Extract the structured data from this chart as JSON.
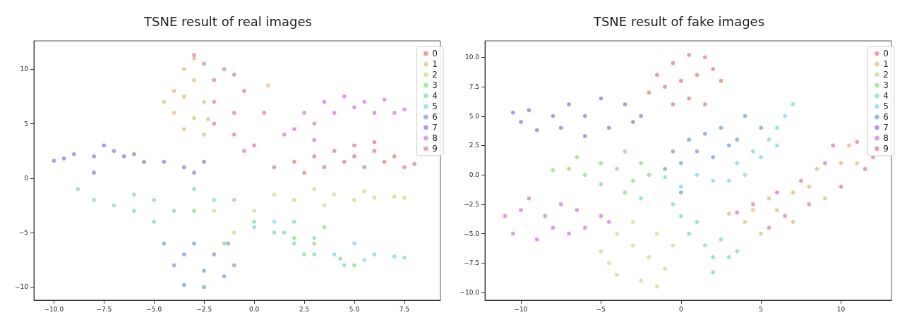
{
  "chart_data": [
    {
      "type": "scatter",
      "title": "TSNE result of real images",
      "legend": "top right",
      "marker": "circle",
      "xlim": [
        -11.0,
        9.3
      ],
      "ylim": [
        -11.2,
        12.6
      ],
      "xticks": [
        {
          "value": -10,
          "label": "−10.0"
        },
        {
          "value": -7.5,
          "label": "−7.5"
        },
        {
          "value": -5,
          "label": "−5.0"
        },
        {
          "value": -2.5,
          "label": "−2.5"
        },
        {
          "value": 0,
          "label": "0.0"
        },
        2.5,
        {
          "value": 5,
          "label": "5.0"
        },
        7.5
      ],
      "yticks": [
        {
          "value": -10,
          "label": "−10"
        },
        {
          "value": -5,
          "label": "−5"
        },
        0,
        5,
        10
      ],
      "series": [
        {
          "name": "0",
          "color": "#db5f57",
          "x": [
            1,
            2,
            3,
            3.5,
            4,
            4.5,
            5,
            5,
            5.5,
            6,
            6.5,
            7,
            7.5,
            8,
            2.5,
            6
          ],
          "values": [
            1,
            1.5,
            2,
            1,
            2.5,
            1.5,
            3,
            2,
            1,
            2.5,
            1.5,
            2,
            1,
            1.3,
            0.5,
            3.3
          ]
        },
        {
          "name": "1",
          "color": "#dbae57",
          "x": [
            -3,
            -3.5,
            -3,
            -4,
            -4.5,
            -3.5,
            -4,
            -3,
            -3.5,
            -2.3,
            -2.5,
            0.7,
            -2.5
          ],
          "values": [
            11,
            10,
            9,
            8,
            7,
            7.5,
            6,
            5.5,
            4.5,
            5.4,
            4,
            8.5,
            7
          ]
        },
        {
          "name": "2",
          "color": "#b9db57",
          "x": [
            1,
            2,
            3,
            3.5,
            4,
            5,
            5.5,
            6,
            7,
            7.5,
            0,
            -2,
            -1
          ],
          "values": [
            -1.5,
            -2,
            -1,
            -2.5,
            -1.5,
            -2,
            -1.2,
            -1.8,
            -1.7,
            -1.8,
            -3,
            -3,
            -5
          ]
        },
        {
          "name": "3",
          "color": "#69db57",
          "x": [
            -3,
            -1,
            0,
            1,
            2,
            3,
            4.3,
            5,
            2.5,
            -1.5,
            3.5
          ],
          "values": [
            -3,
            -2,
            -4,
            -5,
            -5.5,
            -6,
            -7.4,
            -8,
            -7,
            -6,
            -4.5
          ]
        },
        {
          "name": "4",
          "color": "#57db94",
          "x": [
            -8.8,
            -8,
            -7,
            -6,
            -6,
            -5,
            -5,
            -4,
            -3,
            -2,
            1.5,
            3,
            2
          ],
          "values": [
            -1,
            -2,
            -2.5,
            -1.5,
            -3,
            -4,
            -2,
            -3,
            -1,
            -2,
            -5,
            -7,
            -4
          ]
        },
        {
          "name": "5",
          "color": "#57d3db",
          "x": [
            0,
            1,
            2,
            3,
            4,
            5,
            5.5,
            6,
            7,
            7.5,
            4.5
          ],
          "values": [
            -4.5,
            -4,
            -6,
            -5.5,
            -7,
            -6,
            -7.5,
            -7,
            -7.2,
            -7.3,
            -8
          ]
        },
        {
          "name": "6",
          "color": "#5784db",
          "x": [
            -4.5,
            -4,
            -3.5,
            -3.5,
            -3,
            -2.5,
            -2.5,
            -2,
            -1.5,
            -1,
            -1.3
          ],
          "values": [
            -6,
            -8,
            -7,
            -9.8,
            -6,
            -8.5,
            -10,
            -7,
            -9,
            -8,
            -6
          ]
        },
        {
          "name": "7",
          "color": "#7957db",
          "x": [
            -10,
            -9.5,
            -9,
            -8,
            -7.5,
            -7,
            -6.5,
            -6,
            -5.5,
            -4.5,
            -3.5,
            -3,
            -2.5,
            -8
          ],
          "values": [
            1.6,
            1.8,
            2.2,
            2,
            3,
            2.5,
            2,
            2.2,
            1.5,
            1.5,
            1,
            0.5,
            1.5,
            0.5
          ]
        },
        {
          "name": "8",
          "color": "#c957db",
          "x": [
            1.5,
            2,
            2.5,
            3,
            3.5,
            4,
            4.5,
            5,
            5.5,
            6,
            6.5,
            7,
            7.5,
            3
          ],
          "values": [
            4,
            4.5,
            6,
            5,
            7,
            6,
            7.5,
            6.5,
            7,
            6,
            7.2,
            6,
            6.3,
            3.5
          ]
        },
        {
          "name": "9",
          "color": "#db579e",
          "x": [
            -3,
            -2.5,
            -2,
            -1.5,
            -1,
            -0.5,
            -2,
            -1,
            -2,
            -1,
            0,
            0.5,
            -0.5
          ],
          "values": [
            11.3,
            10.5,
            9,
            10,
            9.5,
            8,
            7,
            6,
            5,
            4,
            3,
            6,
            2.5
          ]
        }
      ]
    },
    {
      "type": "scatter",
      "title": "TSNE result of fake images",
      "legend": "top right",
      "marker": "circle",
      "xlim": [
        -12.25,
        13.15
      ],
      "ylim": [
        -10.66,
        11.4
      ],
      "xticks": [
        {
          "value": -10,
          "label": "−10"
        },
        {
          "value": -5,
          "label": "−5"
        },
        0,
        5,
        10
      ],
      "yticks": [
        {
          "value": -10,
          "label": "−10.0"
        },
        {
          "value": -7.5,
          "label": "−7.5"
        },
        {
          "value": -5,
          "label": "−5.0"
        },
        {
          "value": -2.5,
          "label": "−2.5"
        },
        {
          "value": 0,
          "label": "0.0"
        },
        2.5,
        {
          "value": 5,
          "label": "5.0"
        },
        7.5,
        {
          "value": 10,
          "label": "10.0"
        }
      ],
      "series": [
        {
          "name": "0",
          "color": "#db5f57",
          "x": [
            -2,
            -1.5,
            -1,
            -0.5,
            0,
            0.5,
            0.5,
            1,
            1.5,
            2,
            2.5,
            1.5,
            -0.5
          ],
          "values": [
            7,
            8.5,
            7.5,
            9.5,
            8,
            10.2,
            6.5,
            8.5,
            10,
            9,
            8,
            6,
            6
          ]
        },
        {
          "name": "1",
          "color": "#dbae57",
          "x": [
            3,
            4,
            4.5,
            5,
            5.5,
            6,
            7,
            7,
            8,
            8.5,
            9,
            10,
            10.5,
            11
          ],
          "values": [
            -3.3,
            -4,
            -3,
            -5,
            -2,
            -3,
            -1.5,
            -4,
            -1,
            0.5,
            -2,
            1,
            2.5,
            1
          ]
        },
        {
          "name": "2",
          "color": "#b9db57",
          "x": [
            -5,
            -4.5,
            -4,
            -4,
            -3,
            -3,
            -2.5,
            -2,
            -1.5,
            -1.5,
            -1,
            -0.5
          ],
          "values": [
            -6.5,
            -7.5,
            -5,
            -8.5,
            -4,
            -6,
            -9,
            -7,
            -9.5,
            -5,
            -8,
            -6
          ]
        },
        {
          "name": "3",
          "color": "#69db57",
          "x": [
            -8,
            -7,
            -6.5,
            -6,
            -5,
            -5,
            -4,
            -3.5,
            -3,
            -2.5,
            -2,
            -3.5
          ],
          "values": [
            0.4,
            0.5,
            1.5,
            0,
            1,
            -0.8,
            0.5,
            2,
            -0.5,
            1,
            0,
            -1.5
          ]
        },
        {
          "name": "4",
          "color": "#57db94",
          "x": [
            -2.5,
            -0.5,
            0,
            0.5,
            1,
            1.5,
            2,
            2.5,
            3,
            3.5,
            2,
            -1
          ],
          "values": [
            -2,
            -2.5,
            -3.5,
            -5,
            -4,
            -6,
            -7,
            -5.5,
            -7,
            -6.5,
            -8.3,
            -0.2
          ]
        },
        {
          "name": "5",
          "color": "#57d3db",
          "x": [
            0,
            1,
            2,
            3,
            3.5,
            4,
            4.5,
            5,
            5.5,
            6,
            6.5,
            7,
            6
          ],
          "values": [
            -1,
            0,
            -0.5,
            -0.5,
            1,
            0,
            2,
            1.5,
            3,
            4,
            5,
            6,
            2.5
          ]
        },
        {
          "name": "6",
          "color": "#5784db",
          "x": [
            -1,
            -0.5,
            0,
            0.5,
            1,
            1.5,
            2,
            2.5,
            3,
            3.5,
            4,
            5,
            0
          ],
          "values": [
            0.5,
            2,
            1,
            3,
            2,
            3.5,
            1.5,
            4,
            2.5,
            3,
            5,
            4,
            -1.5
          ]
        },
        {
          "name": "7",
          "color": "#7957db",
          "x": [
            -10.5,
            -10,
            -9.5,
            -9,
            -8,
            -7.5,
            -7,
            -6,
            -6,
            -5,
            -4.5,
            -3.5,
            -3,
            -2.5
          ],
          "values": [
            5.3,
            4.5,
            5.5,
            3.8,
            5,
            4,
            6,
            5,
            3.3,
            6.5,
            4,
            6,
            4.5,
            5
          ]
        },
        {
          "name": "8",
          "color": "#c957db",
          "x": [
            -11,
            -10.5,
            -10,
            -9.5,
            -9,
            -8.5,
            -8,
            -7.5,
            -7,
            -6.5,
            -6,
            -5,
            -4.5
          ],
          "values": [
            -3.5,
            -5,
            -3,
            -2,
            -5.5,
            -3.5,
            -4.5,
            -2.5,
            -5,
            -3,
            -4.5,
            -3.5,
            -4
          ]
        },
        {
          "name": "9",
          "color": "#db579e",
          "x": [
            3.5,
            4.5,
            5.5,
            6,
            6.5,
            7.5,
            8,
            9,
            9.5,
            10,
            11,
            11.5,
            12
          ],
          "values": [
            -3.2,
            -2.5,
            -4.5,
            -1.5,
            -3.5,
            -0.5,
            -2.5,
            1,
            2.5,
            -1,
            2.8,
            0.5,
            1.5
          ]
        }
      ]
    }
  ]
}
